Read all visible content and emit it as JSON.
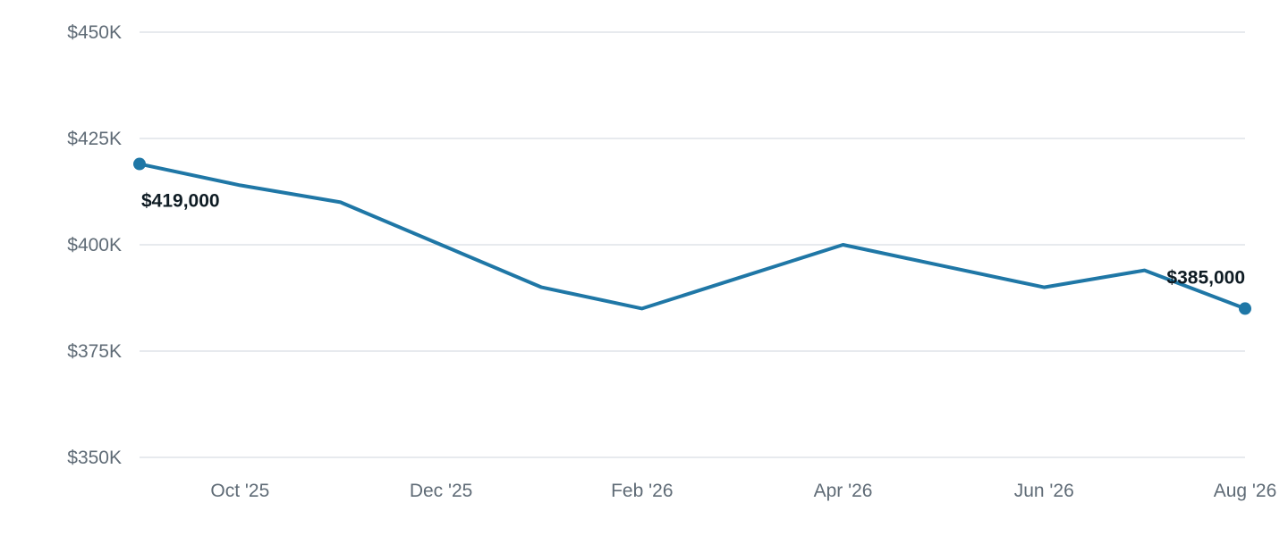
{
  "chart_data": {
    "type": "line",
    "x": [
      "2025-09",
      "2025-10",
      "2025-11",
      "2025-12",
      "2026-01",
      "2026-02",
      "2026-03",
      "2026-04",
      "2026-05",
      "2026-06",
      "2026-07",
      "2026-08"
    ],
    "x_tick_values": [
      "2025-10",
      "2025-12",
      "2026-02",
      "2026-04",
      "2026-06",
      "2026-08"
    ],
    "x_tick_labels": [
      "Oct '25",
      "Dec '25",
      "Feb '26",
      "Apr '26",
      "Jun '26",
      "Aug '26"
    ],
    "series": [
      {
        "values": [
          419000,
          414000,
          410000,
          400000,
          390000,
          385000,
          392500,
          400000,
          395000,
          390000,
          394000,
          385000
        ],
        "color": "#1f77a6"
      }
    ],
    "ylim": [
      350000,
      450000
    ],
    "y_tick_values": [
      350000,
      375000,
      400000,
      425000,
      450000
    ],
    "y_tick_labels": [
      "$350K",
      "$375K",
      "$400K",
      "$425K",
      "$450K"
    ],
    "annotations": [
      {
        "x": "2025-09",
        "value": 419000,
        "text": "$419,000",
        "marker": true
      },
      {
        "x": "2026-08",
        "value": 385000,
        "text": "$385,000",
        "marker": true
      }
    ],
    "grid": true,
    "legend": "none",
    "title": "",
    "xlabel": "",
    "ylabel": ""
  }
}
